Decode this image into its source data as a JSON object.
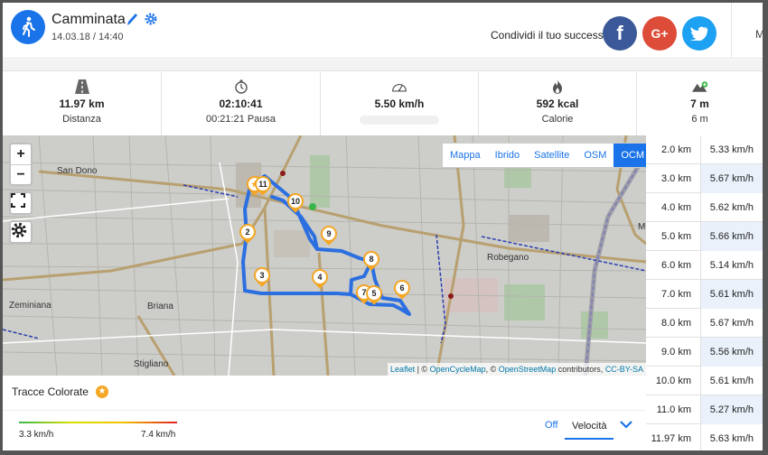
{
  "header": {
    "title": "Camminata",
    "datetime": "14.03.18 / 14:40",
    "share_text": "Condividi il tuo successo",
    "right_label": "M",
    "social": {
      "facebook": "f",
      "google": "G+"
    }
  },
  "stats": [
    {
      "icon": "road-icon",
      "value": "11.97 km",
      "label": "Distanza"
    },
    {
      "icon": "stopwatch-icon",
      "value": "02:10:41",
      "label": "00:21:21 Pausa"
    },
    {
      "icon": "speedometer-icon",
      "value": "5.50 km/h",
      "label": ""
    },
    {
      "icon": "flame-icon",
      "value": "592 kcal",
      "label": "Calorie"
    },
    {
      "icon": "elevation-icon",
      "value": "7 m",
      "label": "6 m"
    }
  ],
  "map": {
    "layers": [
      "Mappa",
      "Ibrido",
      "Satellite",
      "OSM",
      "OCM"
    ],
    "active_layer": "OCM",
    "zoom_in": "+",
    "zoom_out": "−",
    "towns": {
      "san_dono": "San Dono",
      "zeminiana": "Zeminiana",
      "briana": "Briana",
      "robegano": "Robegano",
      "stigliano": "Stigliano",
      "m_edge": "M"
    },
    "pins": [
      "2",
      "3",
      "4",
      "5",
      "6",
      "7",
      "8",
      "9",
      "10",
      "11"
    ],
    "attribution": {
      "leaflet": "Leaflet",
      "sep1": " | © ",
      "ocm": "OpenCycleMap",
      "sep2": ", © ",
      "osm": "OpenStreetMap",
      "sep3": " contributors, ",
      "license": "CC-BY-SA"
    }
  },
  "splits": [
    {
      "km": "2.0 km",
      "speed": "5.33 km/h"
    },
    {
      "km": "3.0 km",
      "speed": "5.67 km/h"
    },
    {
      "km": "4.0 km",
      "speed": "5.62 km/h"
    },
    {
      "km": "5.0 km",
      "speed": "5.66 km/h"
    },
    {
      "km": "6.0 km",
      "speed": "5.14 km/h"
    },
    {
      "km": "7.0 km",
      "speed": "5.61 km/h"
    },
    {
      "km": "8.0 km",
      "speed": "5.67 km/h"
    },
    {
      "km": "9.0 km",
      "speed": "5.56 km/h"
    },
    {
      "km": "10.0 km",
      "speed": "5.61 km/h"
    },
    {
      "km": "11.0 km",
      "speed": "5.27 km/h"
    },
    {
      "km": "11.97 km",
      "speed": "5.63 km/h"
    }
  ],
  "colored_tracks": {
    "title": "Tracce Colorate",
    "min": "3.3 km/h",
    "max": "7.4 km/h",
    "off_label": "Off",
    "selected_metric": "Velocità"
  },
  "colors": {
    "accent": "#1a73e8",
    "pin": "#f5a623",
    "facebook": "#3b5998",
    "google": "#dd4b39",
    "twitter": "#1da1f2",
    "route": "#2b6fe0"
  }
}
